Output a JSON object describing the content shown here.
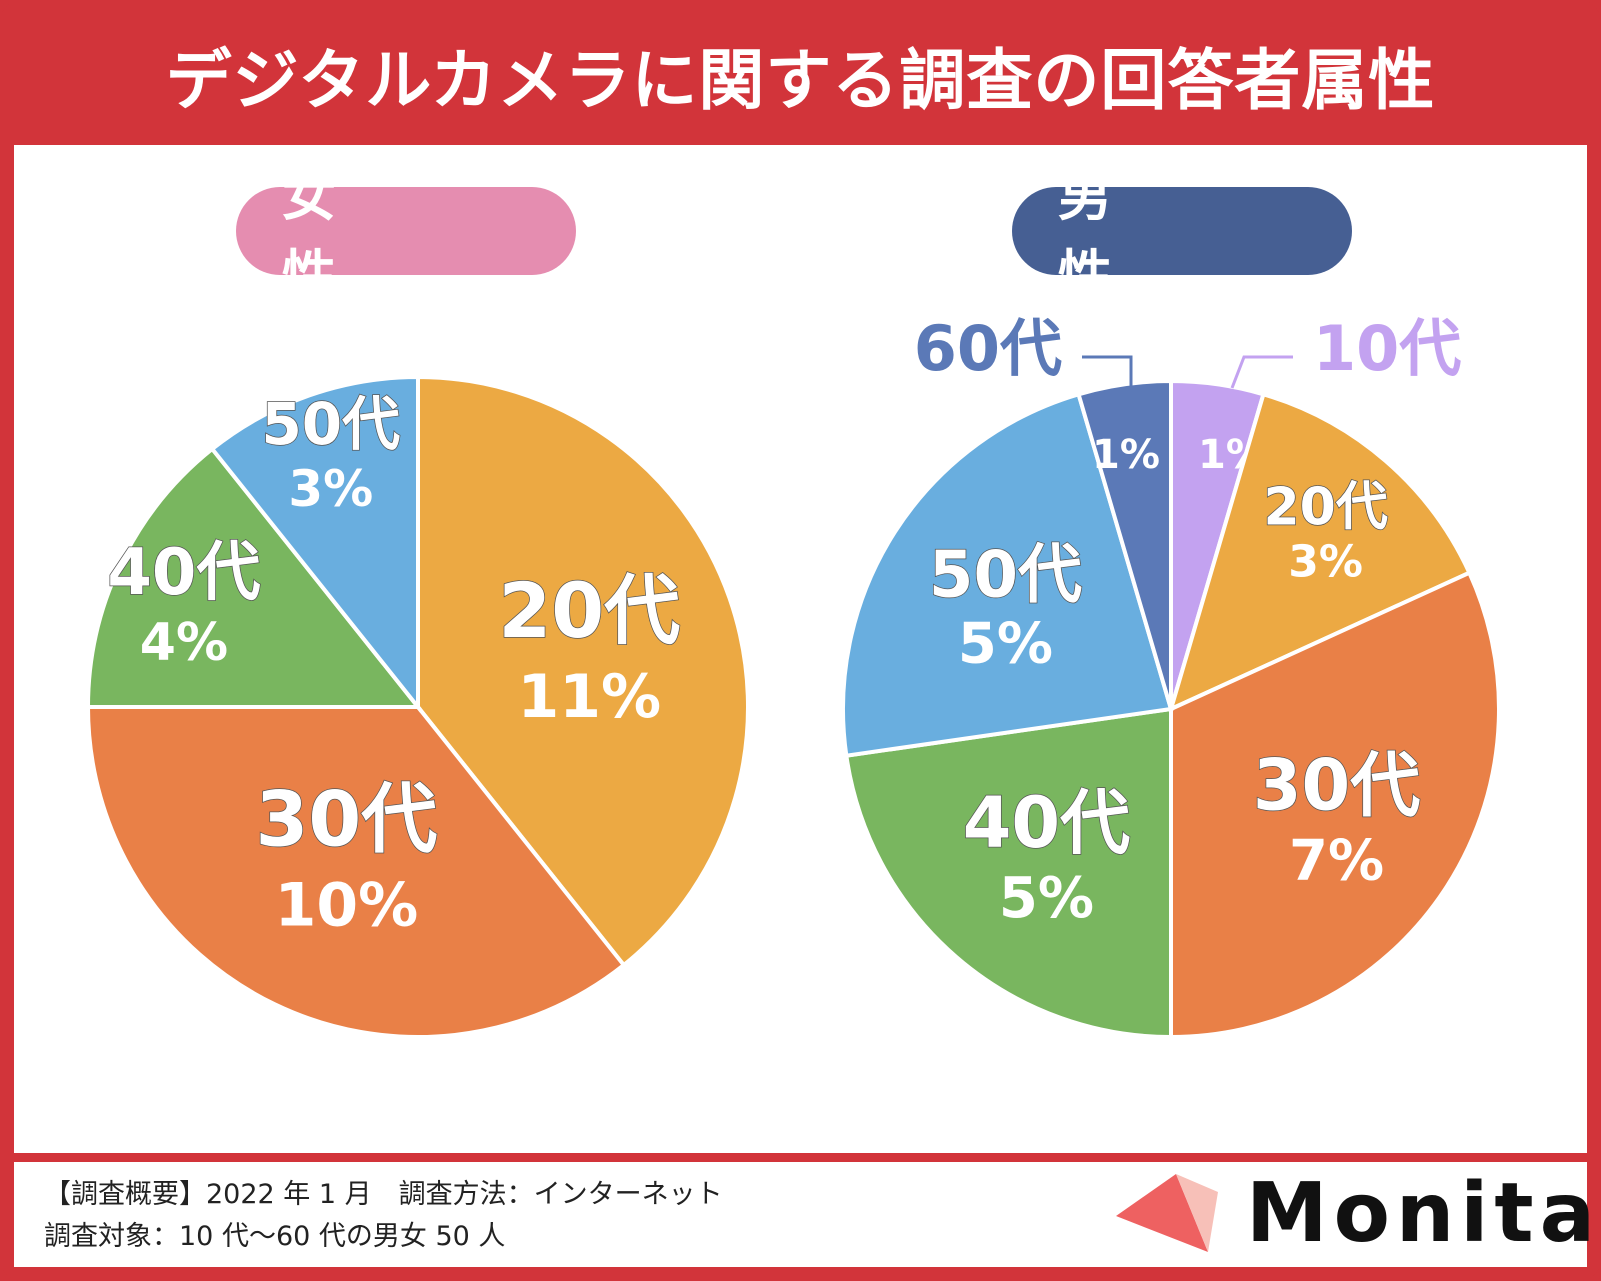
{
  "title": "デジタルカメラに関する調査の回答者属性",
  "footer": {
    "line1": "【調査概要】2022 年 1 月　調査方法：インターネット",
    "line2": "調査対象：10 代〜60 代の男女 50 人"
  },
  "logo": {
    "text": "Monita",
    "color": "#ee6161"
  },
  "colors": {
    "frame": "#d2343a",
    "teens": "#c3a2f0",
    "twenties": "#eca943",
    "thirties": "#e98047",
    "forties": "#79b65f",
    "fifties": "#69aedf",
    "sixties": "#5b79b7"
  },
  "chart_data": [
    {
      "type": "pie",
      "title": "女　性",
      "slices": [
        {
          "label": "20代",
          "value_label": "11%",
          "value": 11
        },
        {
          "label": "30代",
          "value_label": "10%",
          "value": 10
        },
        {
          "label": "40代",
          "value_label": "4%",
          "value": 4
        },
        {
          "label": "50代",
          "value_label": "3%",
          "value": 3
        }
      ]
    },
    {
      "type": "pie",
      "title": "男　性",
      "slices": [
        {
          "label": "10代",
          "value_label": "1%",
          "value": 1
        },
        {
          "label": "20代",
          "value_label": "3%",
          "value": 3
        },
        {
          "label": "30代",
          "value_label": "7%",
          "value": 7
        },
        {
          "label": "40代",
          "value_label": "5%",
          "value": 5
        },
        {
          "label": "50代",
          "value_label": "5%",
          "value": 5
        },
        {
          "label": "60代",
          "value_label": "1%",
          "value": 1
        }
      ]
    }
  ]
}
